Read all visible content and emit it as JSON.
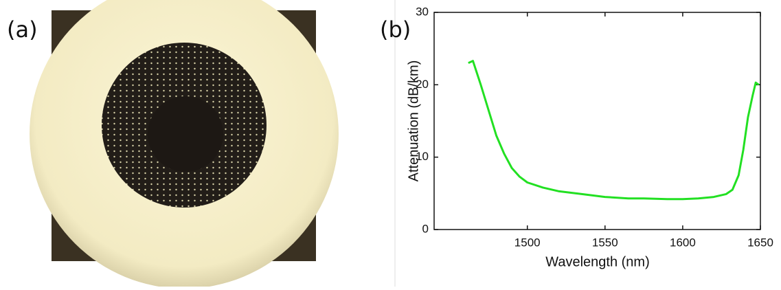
{
  "panel_labels": [
    "(a)",
    "(b)"
  ],
  "chart_data": {
    "type": "line",
    "x_label": "Wavelength (nm)",
    "y_label": "Attenuation (dB/km)",
    "x": [
      1462,
      1465,
      1470,
      1475,
      1480,
      1485,
      1490,
      1495,
      1500,
      1510,
      1520,
      1535,
      1550,
      1565,
      1575,
      1590,
      1600,
      1610,
      1620,
      1628,
      1632,
      1636,
      1639,
      1642,
      1645,
      1647,
      1649
    ],
    "values": [
      23,
      23.3,
      20,
      16.5,
      13,
      10.5,
      8.5,
      7.3,
      6.5,
      5.8,
      5.3,
      4.9,
      4.5,
      4.3,
      4.3,
      4.2,
      4.2,
      4.3,
      4.5,
      4.9,
      5.5,
      7.5,
      11,
      15.5,
      18.5,
      20.3,
      20
    ],
    "color": "#22e022",
    "xlim": [
      1440,
      1650
    ],
    "ylim": [
      0,
      30
    ],
    "xticks": [
      1500,
      1550,
      1600,
      1650
    ],
    "yticks": [
      0,
      10,
      20,
      30
    ]
  }
}
